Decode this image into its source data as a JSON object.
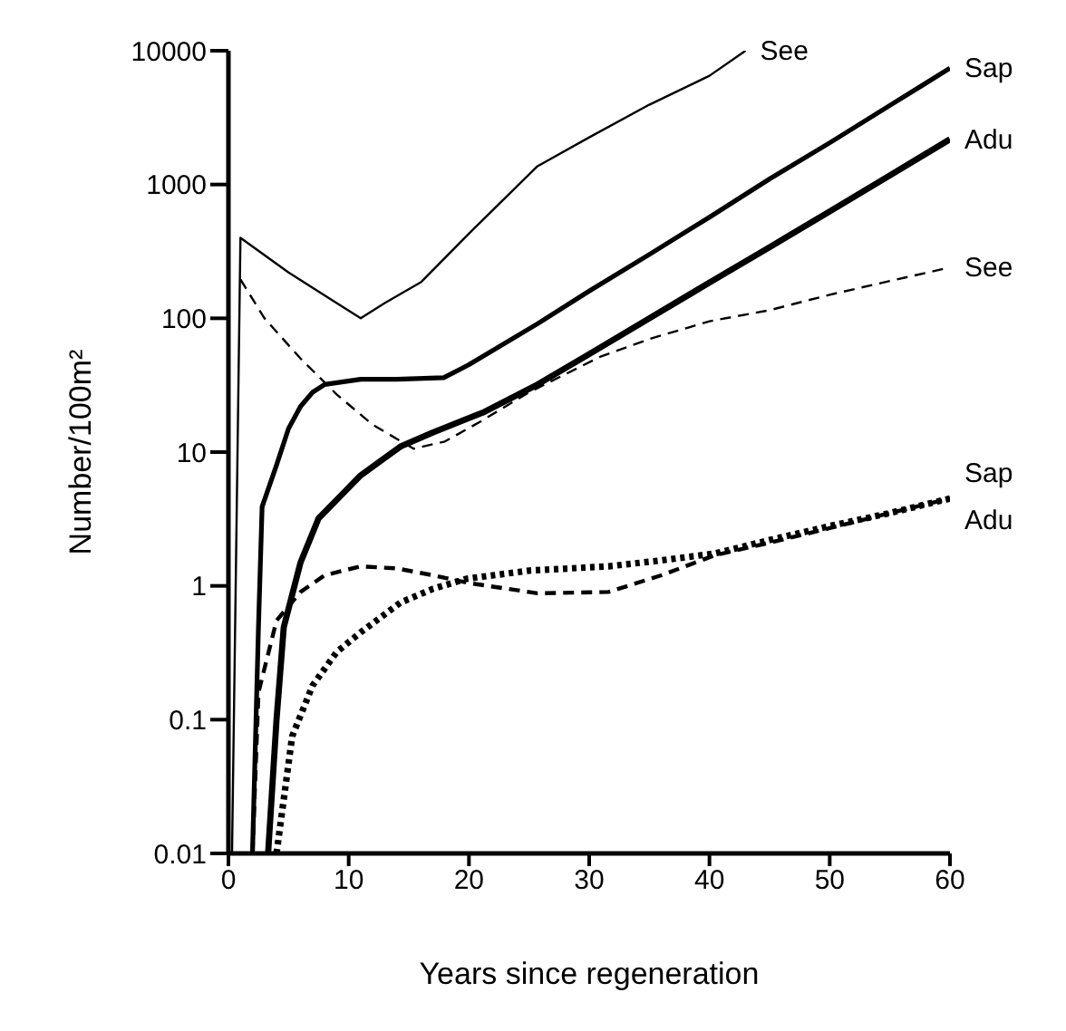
{
  "chart_data": {
    "type": "line",
    "xlabel": "Years since regeneration",
    "ylabel": "Number/100m²",
    "xlim": [
      0,
      60
    ],
    "xticks": [
      0,
      10,
      20,
      30,
      40,
      50,
      60
    ],
    "ylim": [
      0.01,
      10000
    ],
    "yticks": [
      0.01,
      0.1,
      1,
      10,
      100,
      1000,
      10000
    ],
    "log": "y",
    "marker": "none",
    "series": [
      {
        "name": "See",
        "color": "#000000",
        "line_style": "solid",
        "x": [
          0.3,
          1,
          5,
          9,
          11,
          13,
          16,
          20,
          25.7,
          30,
          35,
          40,
          43
        ],
        "values": [
          0.01,
          400,
          220,
          130,
          100,
          130,
          186,
          430,
          1370,
          2250,
          3950,
          6500,
          10000
        ]
      },
      {
        "name": "Sap",
        "color": "#000000",
        "line_style": "solid",
        "x": [
          2,
          2.5,
          2.8,
          4,
          5,
          6,
          7,
          8,
          11,
          14,
          17.9,
          20,
          25.7,
          30,
          35,
          40,
          45,
          50,
          55,
          60
        ],
        "values": [
          0.01,
          0.5,
          3.9,
          8,
          15,
          22,
          28,
          32,
          35,
          35,
          36,
          45,
          91,
          160,
          300,
          570,
          1100,
          2050,
          3900,
          7400
        ]
      },
      {
        "name": "Adu",
        "color": "#000000",
        "line_style": "solid",
        "x": [
          3.3,
          4,
          4.6,
          6,
          7.5,
          11,
          14.3,
          17,
          21.3,
          25.7,
          30,
          35,
          40,
          45,
          50,
          55,
          60
        ],
        "values": [
          0.01,
          0.1,
          0.49,
          1.5,
          3.2,
          6.7,
          11,
          14,
          20,
          32,
          54,
          100,
          185,
          340,
          630,
          1170,
          2180
        ]
      },
      {
        "name": "See",
        "color": "#000000",
        "line_style": "dashed",
        "x": [
          1,
          3,
          6,
          9,
          12,
          15.4,
          18,
          21,
          25,
          31,
          35,
          40,
          45,
          50,
          55,
          60
        ],
        "values": [
          195,
          100,
          50,
          27,
          16,
          10.6,
          12,
          17,
          28,
          52,
          70,
          95,
          115,
          150,
          190,
          240
        ]
      },
      {
        "name": "Sap",
        "color": "#000000",
        "line_style": "dashed",
        "x": [
          2,
          2.5,
          4,
          6,
          8,
          11,
          14,
          17,
          20,
          25.7,
          31.6,
          36,
          40.5,
          45,
          50,
          55,
          60
        ],
        "values": [
          0.01,
          0.16,
          0.55,
          0.9,
          1.2,
          1.4,
          1.35,
          1.2,
          1.05,
          0.88,
          0.9,
          1.2,
          1.7,
          2.1,
          2.7,
          3.5,
          4.5
        ]
      },
      {
        "name": "Adu",
        "color": "#000000",
        "line_style": "dotted",
        "x": [
          4,
          5.3,
          7,
          9,
          11,
          14.3,
          17,
          19.8,
          25,
          31.6,
          36,
          40.5,
          45,
          50,
          55,
          60
        ],
        "values": [
          0.01,
          0.075,
          0.18,
          0.32,
          0.45,
          0.75,
          0.95,
          1.13,
          1.3,
          1.4,
          1.55,
          1.75,
          2.2,
          2.8,
          3.5,
          4.5
        ]
      }
    ]
  }
}
